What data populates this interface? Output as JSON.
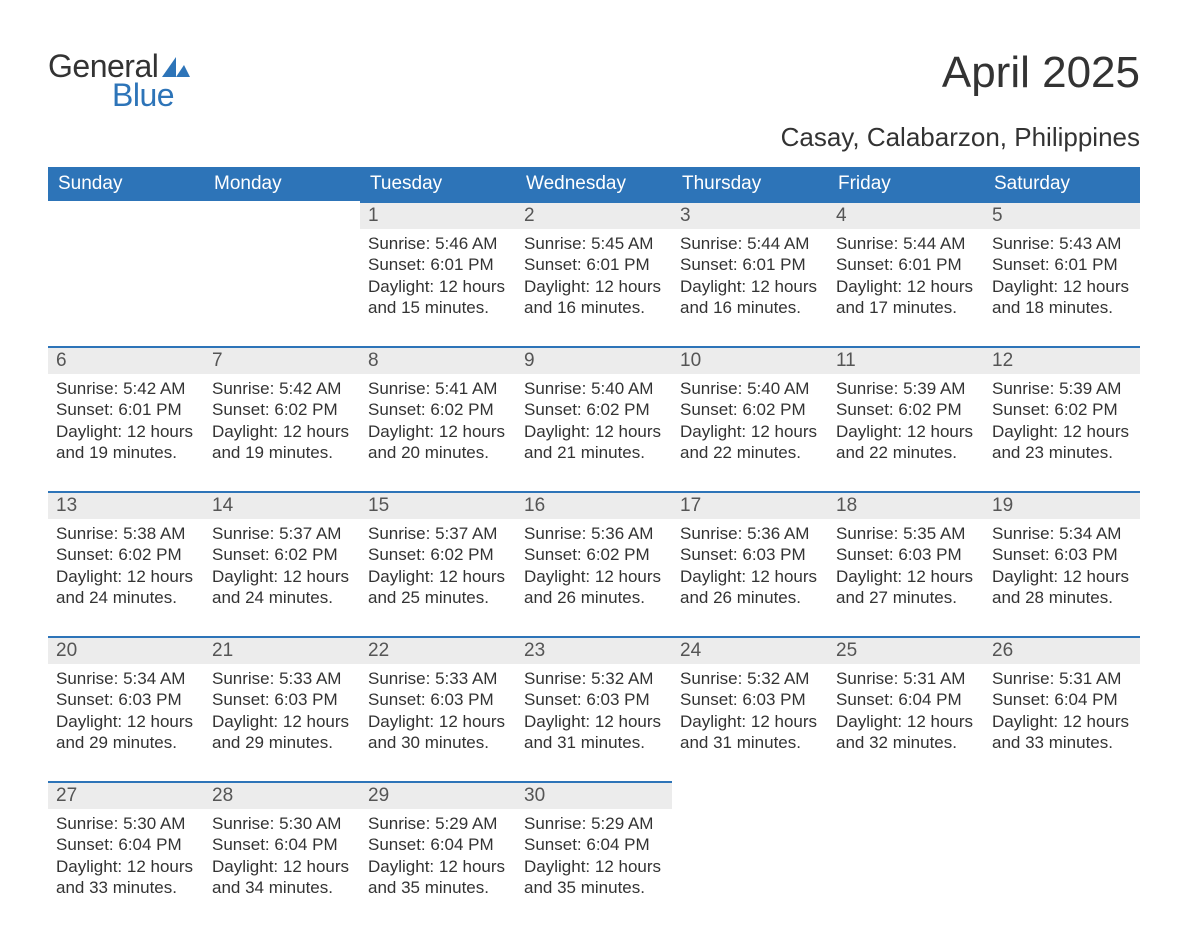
{
  "logo": {
    "word1": "General",
    "word2": "Blue",
    "flag_color": "#2d74b8"
  },
  "title": "April 2025",
  "location": "Casay, Calabarzon, Philippines",
  "colors": {
    "header_bg": "#2d74b8",
    "header_text": "#ffffff",
    "daynum_bg": "#ececec",
    "row_border": "#2d74b8",
    "body_text": "#333333",
    "page_bg": "#ffffff"
  },
  "typography": {
    "title_fontsize": 44,
    "location_fontsize": 26,
    "header_fontsize": 19,
    "daynum_fontsize": 19,
    "body_fontsize": 17
  },
  "calendar": {
    "type": "table",
    "columns": [
      "Sunday",
      "Monday",
      "Tuesday",
      "Wednesday",
      "Thursday",
      "Friday",
      "Saturday"
    ],
    "weeks": [
      [
        null,
        null,
        {
          "day": "1",
          "sunrise": "Sunrise: 5:46 AM",
          "sunset": "Sunset: 6:01 PM",
          "daylight1": "Daylight: 12 hours",
          "daylight2": "and 15 minutes."
        },
        {
          "day": "2",
          "sunrise": "Sunrise: 5:45 AM",
          "sunset": "Sunset: 6:01 PM",
          "daylight1": "Daylight: 12 hours",
          "daylight2": "and 16 minutes."
        },
        {
          "day": "3",
          "sunrise": "Sunrise: 5:44 AM",
          "sunset": "Sunset: 6:01 PM",
          "daylight1": "Daylight: 12 hours",
          "daylight2": "and 16 minutes."
        },
        {
          "day": "4",
          "sunrise": "Sunrise: 5:44 AM",
          "sunset": "Sunset: 6:01 PM",
          "daylight1": "Daylight: 12 hours",
          "daylight2": "and 17 minutes."
        },
        {
          "day": "5",
          "sunrise": "Sunrise: 5:43 AM",
          "sunset": "Sunset: 6:01 PM",
          "daylight1": "Daylight: 12 hours",
          "daylight2": "and 18 minutes."
        }
      ],
      [
        {
          "day": "6",
          "sunrise": "Sunrise: 5:42 AM",
          "sunset": "Sunset: 6:01 PM",
          "daylight1": "Daylight: 12 hours",
          "daylight2": "and 19 minutes."
        },
        {
          "day": "7",
          "sunrise": "Sunrise: 5:42 AM",
          "sunset": "Sunset: 6:02 PM",
          "daylight1": "Daylight: 12 hours",
          "daylight2": "and 19 minutes."
        },
        {
          "day": "8",
          "sunrise": "Sunrise: 5:41 AM",
          "sunset": "Sunset: 6:02 PM",
          "daylight1": "Daylight: 12 hours",
          "daylight2": "and 20 minutes."
        },
        {
          "day": "9",
          "sunrise": "Sunrise: 5:40 AM",
          "sunset": "Sunset: 6:02 PM",
          "daylight1": "Daylight: 12 hours",
          "daylight2": "and 21 minutes."
        },
        {
          "day": "10",
          "sunrise": "Sunrise: 5:40 AM",
          "sunset": "Sunset: 6:02 PM",
          "daylight1": "Daylight: 12 hours",
          "daylight2": "and 22 minutes."
        },
        {
          "day": "11",
          "sunrise": "Sunrise: 5:39 AM",
          "sunset": "Sunset: 6:02 PM",
          "daylight1": "Daylight: 12 hours",
          "daylight2": "and 22 minutes."
        },
        {
          "day": "12",
          "sunrise": "Sunrise: 5:39 AM",
          "sunset": "Sunset: 6:02 PM",
          "daylight1": "Daylight: 12 hours",
          "daylight2": "and 23 minutes."
        }
      ],
      [
        {
          "day": "13",
          "sunrise": "Sunrise: 5:38 AM",
          "sunset": "Sunset: 6:02 PM",
          "daylight1": "Daylight: 12 hours",
          "daylight2": "and 24 minutes."
        },
        {
          "day": "14",
          "sunrise": "Sunrise: 5:37 AM",
          "sunset": "Sunset: 6:02 PM",
          "daylight1": "Daylight: 12 hours",
          "daylight2": "and 24 minutes."
        },
        {
          "day": "15",
          "sunrise": "Sunrise: 5:37 AM",
          "sunset": "Sunset: 6:02 PM",
          "daylight1": "Daylight: 12 hours",
          "daylight2": "and 25 minutes."
        },
        {
          "day": "16",
          "sunrise": "Sunrise: 5:36 AM",
          "sunset": "Sunset: 6:02 PM",
          "daylight1": "Daylight: 12 hours",
          "daylight2": "and 26 minutes."
        },
        {
          "day": "17",
          "sunrise": "Sunrise: 5:36 AM",
          "sunset": "Sunset: 6:03 PM",
          "daylight1": "Daylight: 12 hours",
          "daylight2": "and 26 minutes."
        },
        {
          "day": "18",
          "sunrise": "Sunrise: 5:35 AM",
          "sunset": "Sunset: 6:03 PM",
          "daylight1": "Daylight: 12 hours",
          "daylight2": "and 27 minutes."
        },
        {
          "day": "19",
          "sunrise": "Sunrise: 5:34 AM",
          "sunset": "Sunset: 6:03 PM",
          "daylight1": "Daylight: 12 hours",
          "daylight2": "and 28 minutes."
        }
      ],
      [
        {
          "day": "20",
          "sunrise": "Sunrise: 5:34 AM",
          "sunset": "Sunset: 6:03 PM",
          "daylight1": "Daylight: 12 hours",
          "daylight2": "and 29 minutes."
        },
        {
          "day": "21",
          "sunrise": "Sunrise: 5:33 AM",
          "sunset": "Sunset: 6:03 PM",
          "daylight1": "Daylight: 12 hours",
          "daylight2": "and 29 minutes."
        },
        {
          "day": "22",
          "sunrise": "Sunrise: 5:33 AM",
          "sunset": "Sunset: 6:03 PM",
          "daylight1": "Daylight: 12 hours",
          "daylight2": "and 30 minutes."
        },
        {
          "day": "23",
          "sunrise": "Sunrise: 5:32 AM",
          "sunset": "Sunset: 6:03 PM",
          "daylight1": "Daylight: 12 hours",
          "daylight2": "and 31 minutes."
        },
        {
          "day": "24",
          "sunrise": "Sunrise: 5:32 AM",
          "sunset": "Sunset: 6:03 PM",
          "daylight1": "Daylight: 12 hours",
          "daylight2": "and 31 minutes."
        },
        {
          "day": "25",
          "sunrise": "Sunrise: 5:31 AM",
          "sunset": "Sunset: 6:04 PM",
          "daylight1": "Daylight: 12 hours",
          "daylight2": "and 32 minutes."
        },
        {
          "day": "26",
          "sunrise": "Sunrise: 5:31 AM",
          "sunset": "Sunset: 6:04 PM",
          "daylight1": "Daylight: 12 hours",
          "daylight2": "and 33 minutes."
        }
      ],
      [
        {
          "day": "27",
          "sunrise": "Sunrise: 5:30 AM",
          "sunset": "Sunset: 6:04 PM",
          "daylight1": "Daylight: 12 hours",
          "daylight2": "and 33 minutes."
        },
        {
          "day": "28",
          "sunrise": "Sunrise: 5:30 AM",
          "sunset": "Sunset: 6:04 PM",
          "daylight1": "Daylight: 12 hours",
          "daylight2": "and 34 minutes."
        },
        {
          "day": "29",
          "sunrise": "Sunrise: 5:29 AM",
          "sunset": "Sunset: 6:04 PM",
          "daylight1": "Daylight: 12 hours",
          "daylight2": "and 35 minutes."
        },
        {
          "day": "30",
          "sunrise": "Sunrise: 5:29 AM",
          "sunset": "Sunset: 6:04 PM",
          "daylight1": "Daylight: 12 hours",
          "daylight2": "and 35 minutes."
        },
        null,
        null,
        null
      ]
    ]
  }
}
